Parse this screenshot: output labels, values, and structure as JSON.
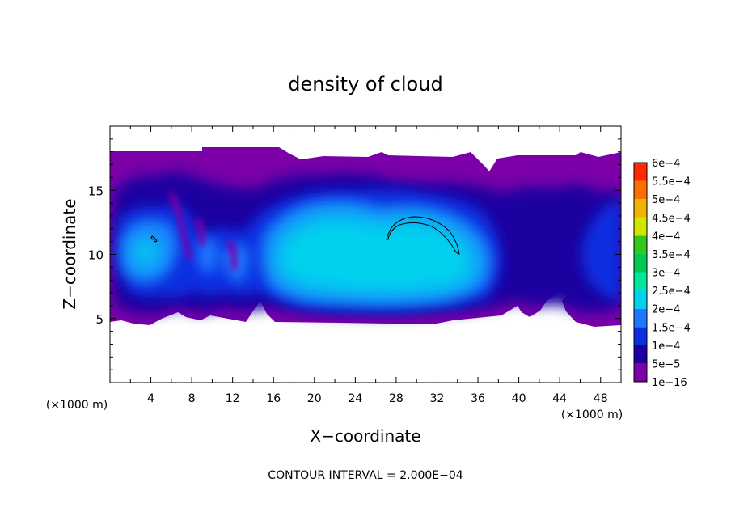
{
  "chart_data": {
    "type": "heatmap",
    "title": "density of cloud",
    "xlabel": "X−coordinate",
    "ylabel": "Z−coordinate",
    "x_unit_label": "(×1000 m)",
    "x_unit_label_right": "(×1000 m)",
    "footer": "CONTOUR INTERVAL = 2.000E−04",
    "xlim": [
      0,
      50
    ],
    "ylim": [
      0,
      20
    ],
    "x_ticks": [
      4,
      8,
      12,
      16,
      20,
      24,
      28,
      32,
      36,
      40,
      44,
      48
    ],
    "x_tick_labels": [
      "4",
      "8",
      "12",
      "16",
      "20",
      "24",
      "28",
      "32",
      "36",
      "40",
      "44",
      "48"
    ],
    "y_ticks": [
      5,
      10,
      15
    ],
    "y_tick_labels": [
      "5",
      "10",
      "15"
    ],
    "colorbar": {
      "levels": [
        "1e−16",
        "5e−5",
        "1e−4",
        "1.5e−4",
        "2e−4",
        "2.5e−4",
        "3e−4",
        "3.5e−4",
        "4e−4",
        "4.5e−4",
        "5e−4",
        "5.5e−4",
        "6e−4"
      ],
      "colors": [
        "#7b00a8",
        "#1e00a0",
        "#0a2ee0",
        "#1e78ff",
        "#00d2ee",
        "#00e6a0",
        "#00c850",
        "#32c820",
        "#d2e600",
        "#f0b400",
        "#ff6e00",
        "#ff2800",
        "#ff9696"
      ]
    },
    "cloud_layer": {
      "z_bottom": 4.5,
      "z_top": 18
    },
    "contours": [
      {
        "level": "2e−4",
        "x_center": 4.4,
        "z_center": 11.3
      },
      {
        "level": "2e−4",
        "x_from": 27,
        "x_to": 34,
        "z_peak": 12.8
      }
    ]
  }
}
